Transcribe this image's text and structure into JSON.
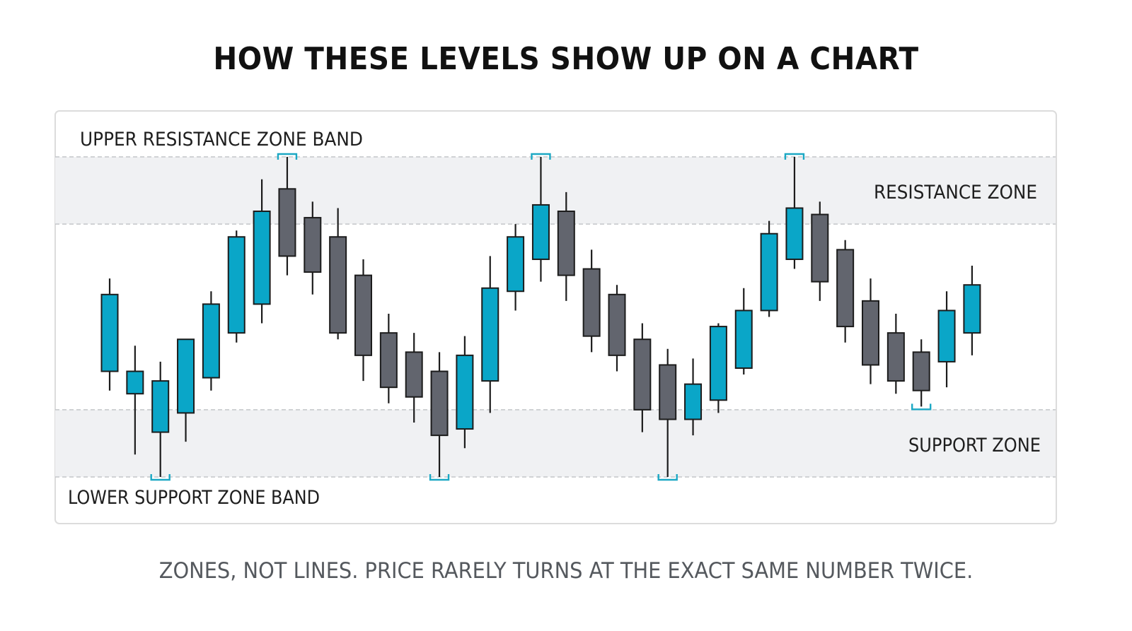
{
  "title": "HOW THESE LEVELS SHOW UP ON A CHART",
  "caption": "ZONES, NOT LINES. PRICE RARELY TURNS AT THE EXACT SAME NUMBER TWICE.",
  "colors": {
    "bullish": "#0aa6c8",
    "bearish": "#62656e",
    "wick": "#1c1c1c",
    "zone_fill": "#f0f1f3",
    "zone_line": "#c4c6c9",
    "marker": "#1ba8c4",
    "label": "#1e1e1e"
  },
  "chart_data": {
    "type": "candlestick",
    "ylim": [
      0,
      100
    ],
    "zones": [
      {
        "name": "resistance",
        "low": 80,
        "high": 100,
        "label": "RESISTANCE ZONE",
        "band_label": "UPPER RESISTANCE ZONE BAND"
      },
      {
        "name": "support",
        "low": 0,
        "high": 20,
        "label": "SUPPORT ZONE",
        "band_label": "LOWER SUPPORT ZONE BAND"
      }
    ],
    "candles": [
      {
        "open": 33,
        "high": 62,
        "low": 27,
        "close": 57
      },
      {
        "open": 26,
        "high": 41,
        "low": 7,
        "close": 33
      },
      {
        "open": 14,
        "high": 36,
        "low": 0,
        "close": 30
      },
      {
        "open": 20,
        "high": 43,
        "low": 11,
        "close": 43
      },
      {
        "open": 31,
        "high": 58,
        "low": 27,
        "close": 54
      },
      {
        "open": 45,
        "high": 77,
        "low": 42,
        "close": 75
      },
      {
        "open": 54,
        "high": 93,
        "low": 48,
        "close": 83
      },
      {
        "open": 90,
        "high": 100,
        "low": 63,
        "close": 69
      },
      {
        "open": 81,
        "high": 86,
        "low": 57,
        "close": 64
      },
      {
        "open": 75,
        "high": 84,
        "low": 43,
        "close": 45
      },
      {
        "open": 63,
        "high": 68,
        "low": 30,
        "close": 38
      },
      {
        "open": 45,
        "high": 51,
        "low": 23,
        "close": 28
      },
      {
        "open": 39,
        "high": 45,
        "low": 17,
        "close": 25
      },
      {
        "open": 33,
        "high": 39,
        "low": 0,
        "close": 13
      },
      {
        "open": 15,
        "high": 44,
        "low": 9,
        "close": 38
      },
      {
        "open": 30,
        "high": 69,
        "low": 20,
        "close": 59
      },
      {
        "open": 58,
        "high": 79,
        "low": 52,
        "close": 75
      },
      {
        "open": 68,
        "high": 100,
        "low": 61,
        "close": 85
      },
      {
        "open": 83,
        "high": 89,
        "low": 55,
        "close": 63
      },
      {
        "open": 65,
        "high": 71,
        "low": 39,
        "close": 44
      },
      {
        "open": 57,
        "high": 60,
        "low": 33,
        "close": 38
      },
      {
        "open": 43,
        "high": 48,
        "low": 14,
        "close": 21
      },
      {
        "open": 35,
        "high": 40,
        "low": 0,
        "close": 18
      },
      {
        "open": 18,
        "high": 37,
        "low": 13,
        "close": 29
      },
      {
        "open": 24,
        "high": 48,
        "low": 20,
        "close": 47
      },
      {
        "open": 34,
        "high": 59,
        "low": 32,
        "close": 52
      },
      {
        "open": 52,
        "high": 80,
        "low": 50,
        "close": 76
      },
      {
        "open": 68,
        "high": 100,
        "low": 65,
        "close": 84
      },
      {
        "open": 82,
        "high": 86,
        "low": 55,
        "close": 61
      },
      {
        "open": 71,
        "high": 74,
        "low": 42,
        "close": 47
      },
      {
        "open": 55,
        "high": 62,
        "low": 29,
        "close": 35
      },
      {
        "open": 45,
        "high": 51,
        "low": 26,
        "close": 30
      },
      {
        "open": 39,
        "high": 43,
        "low": 22,
        "close": 27
      },
      {
        "open": 36,
        "high": 58,
        "low": 28,
        "close": 52
      },
      {
        "open": 45,
        "high": 66,
        "low": 38,
        "close": 60
      }
    ],
    "touch_markers": [
      {
        "candle": 2,
        "zone": "support"
      },
      {
        "candle": 7,
        "zone": "resistance"
      },
      {
        "candle": 13,
        "zone": "support"
      },
      {
        "candle": 17,
        "zone": "resistance"
      },
      {
        "candle": 22,
        "zone": "support"
      },
      {
        "candle": 27,
        "zone": "resistance"
      },
      {
        "candle": 32,
        "zone": "support"
      }
    ]
  }
}
